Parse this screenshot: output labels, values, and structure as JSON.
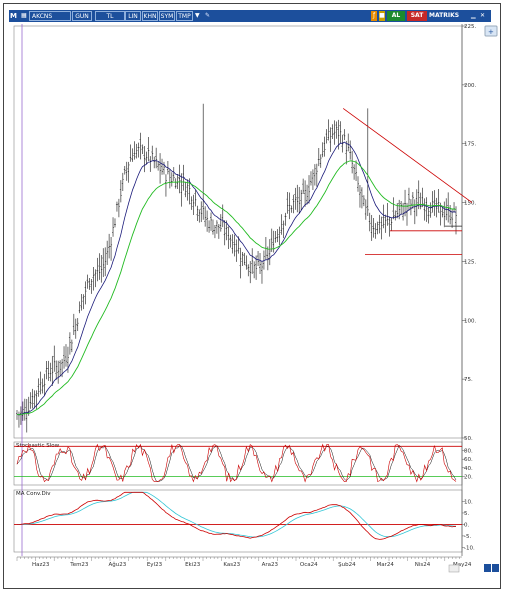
{
  "toolbar": {
    "menu_glyph": "M",
    "symbol": "AKCNS",
    "period": "GUN",
    "currency": "TL",
    "tools": [
      "LIN",
      "KHN",
      "SYM",
      "TMP"
    ],
    "buy_label": "AL",
    "sell_label": "SAT",
    "matriks_label": "MATRIKS",
    "colors": {
      "bar": "#1c4f9c",
      "buy": "#1d8a2e",
      "sell": "#c62828"
    }
  },
  "chart_data": [
    {
      "type": "ohlc",
      "x": [
        "Haz23",
        "Tem23",
        "Ağu23",
        "Eyl23",
        "Eki23",
        "Kas23",
        "Ara23",
        "Oca24",
        "Şub24",
        "Mar24",
        "Nis24",
        "May24"
      ],
      "ylim": [
        50,
        225
      ],
      "yticks": [
        50,
        75,
        100,
        125,
        150,
        175,
        200,
        225
      ],
      "tick_labels": {
        "y": [
          "50.",
          "75.",
          "100.",
          "125.",
          "150.",
          "175.",
          "200.",
          "225."
        ]
      },
      "close_approx": [
        60,
        80,
        120,
        172,
        160,
        140,
        122,
        150,
        180,
        140,
        150,
        145
      ],
      "series": [
        {
          "name": "price",
          "color": "#111111"
        },
        {
          "name": "fast-ma",
          "color": "#1a1a7a"
        },
        {
          "name": "slow-ma",
          "color": "#22bb22"
        }
      ],
      "annotations": [
        {
          "type": "trendline",
          "from": [
            "Şub24",
            190
          ],
          "to": [
            "May24",
            150
          ],
          "color": "#cc0000"
        },
        {
          "type": "hline",
          "y": 138,
          "color": "#cc0000"
        },
        {
          "type": "hline",
          "y": 128,
          "color": "#cc0000"
        },
        {
          "type": "hline",
          "y": 140,
          "color": "#222222"
        }
      ]
    },
    {
      "type": "line",
      "title": "Stochastic Slow",
      "ylim": [
        0,
        100
      ],
      "yticks": [
        20,
        40,
        60,
        80
      ],
      "tick_labels": {
        "y": [
          "20.",
          "40.",
          "60.",
          "80."
        ]
      },
      "levels": [
        {
          "y": 90,
          "color": "#cc0000"
        },
        {
          "y": 20,
          "color": "#22bb22"
        }
      ],
      "series": [
        {
          "name": "%K",
          "color": "#cc0000"
        },
        {
          "name": "%D",
          "color": "#111111"
        }
      ]
    },
    {
      "type": "line",
      "title": "MA Conv.Div",
      "ylim": [
        -12,
        15
      ],
      "yticks": [
        -10,
        -5,
        0,
        5,
        10
      ],
      "tick_labels": {
        "y": [
          "-10.",
          "-5.",
          "0.",
          "5.",
          "10."
        ]
      },
      "levels": [
        {
          "y": 0,
          "color": "#cc0000"
        }
      ],
      "series": [
        {
          "name": "MACD",
          "color": "#cc0000"
        },
        {
          "name": "signal",
          "color": "#33c6d6"
        }
      ]
    }
  ]
}
